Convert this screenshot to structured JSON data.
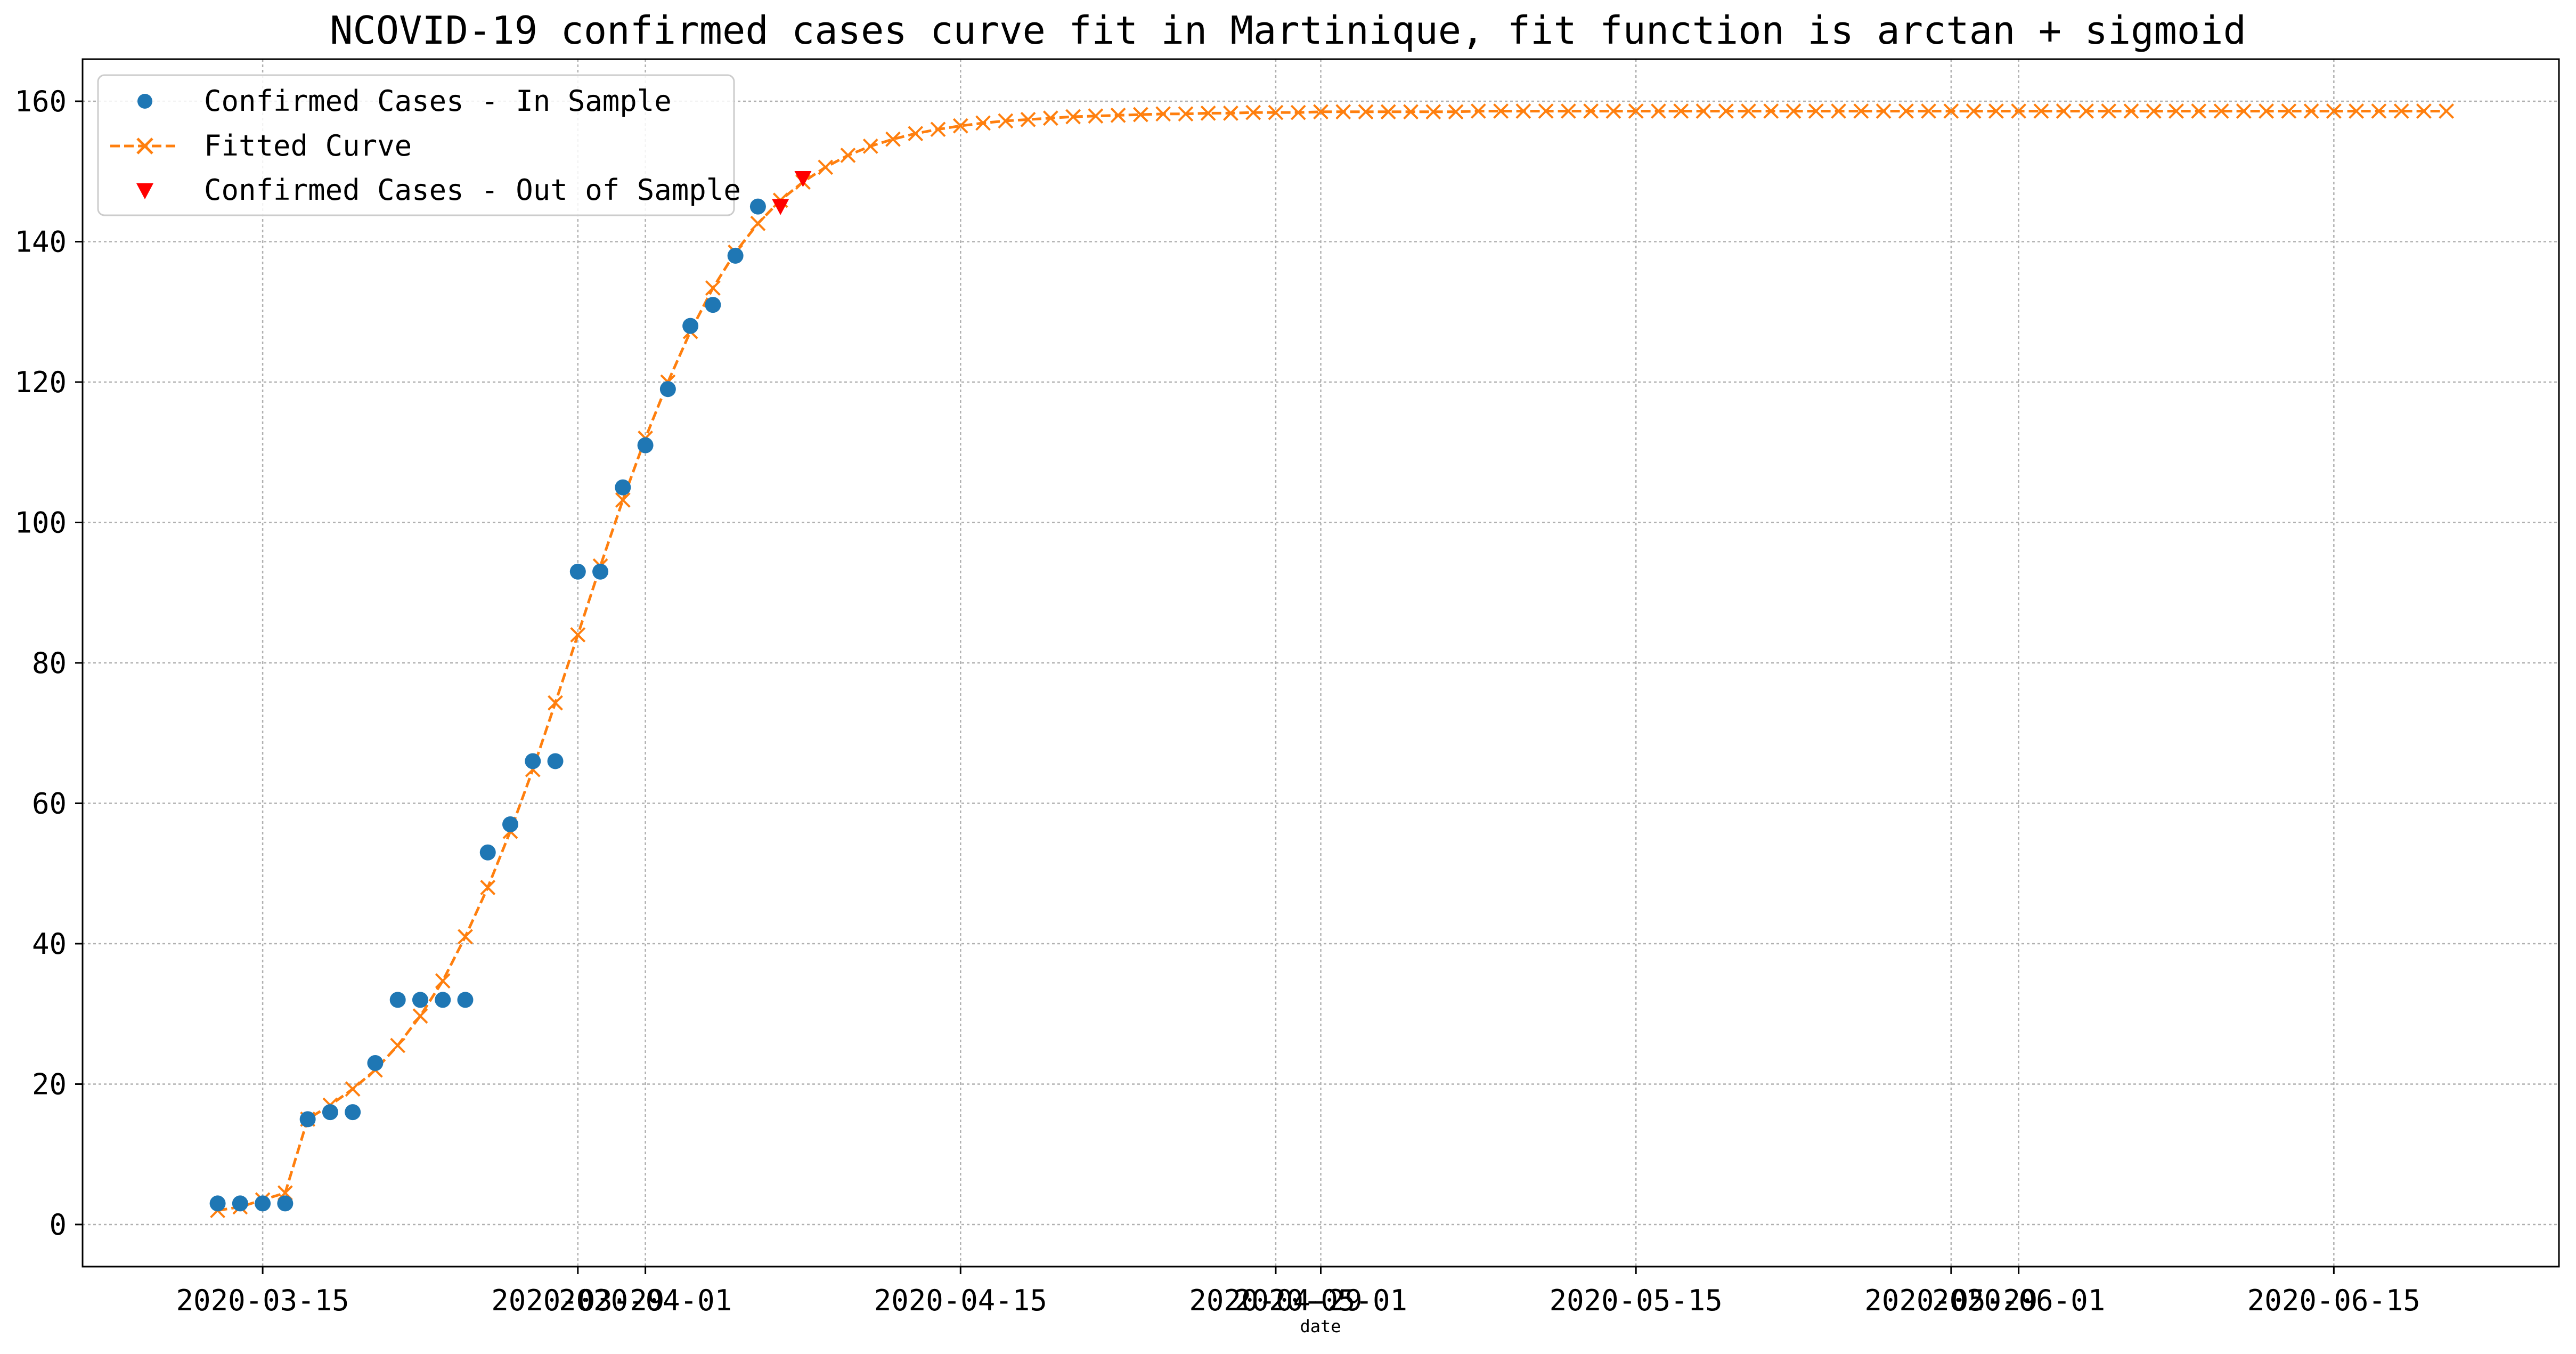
{
  "chart_data": {
    "type": "line",
    "title": "NCOVID-19 confirmed cases curve fit in Martinique, fit function is arctan + sigmoid",
    "xlabel": "date",
    "ylabel": "",
    "ylim": [
      -6,
      166
    ],
    "xlim": [
      "2020-03-07",
      "2020-06-25"
    ],
    "grid": true,
    "legend_position": "upper left",
    "yticks": [
      0,
      20,
      40,
      60,
      80,
      100,
      120,
      140,
      160
    ],
    "xticks": [
      "2020-03-15",
      "2020-03-29",
      "2020-04-01",
      "2020-04-15",
      "2020-04-29",
      "2020-05-01",
      "2020-05-15",
      "2020-05-29",
      "2020-06-01",
      "2020-06-15"
    ],
    "series": [
      {
        "name": "Confirmed Cases - In Sample",
        "kind": "scatter",
        "marker": "circle",
        "color": "#1f77b4",
        "start_date": "2020-03-13",
        "values": [
          3,
          3,
          3,
          3,
          15,
          16,
          16,
          23,
          32,
          32,
          32,
          32,
          53,
          57,
          66,
          66,
          93,
          93,
          105,
          111,
          119,
          128,
          131,
          138,
          145
        ]
      },
      {
        "name": "Fitted Curve",
        "kind": "line",
        "marker": "x",
        "linestyle": "dashed",
        "color": "#ff7f0e",
        "start_date": "2020-03-13",
        "values": [
          2,
          2.5,
          3.5,
          4.5,
          15,
          17,
          19.3,
          22,
          25.5,
          29.7,
          34.7,
          41,
          48,
          56,
          64.8,
          74.3,
          84,
          93.8,
          103.2,
          112,
          120,
          127.2,
          133.4,
          138.5,
          142.6,
          145.9,
          148.5,
          150.6,
          152.3,
          153.6,
          154.6,
          155.4,
          156,
          156.5,
          156.9,
          157.2,
          157.4,
          157.6,
          157.8,
          157.9,
          158,
          158.1,
          158.2,
          158.2,
          158.3,
          158.3,
          158.4,
          158.4,
          158.4,
          158.5,
          158.5,
          158.5,
          158.5,
          158.5,
          158.5,
          158.5,
          158.6,
          158.6,
          158.6,
          158.6,
          158.6,
          158.6,
          158.6,
          158.6,
          158.6,
          158.6,
          158.6,
          158.6,
          158.6,
          158.6,
          158.6,
          158.6,
          158.6,
          158.6,
          158.6,
          158.6,
          158.6,
          158.6,
          158.6,
          158.6,
          158.6,
          158.6,
          158.6,
          158.6,
          158.6,
          158.6,
          158.6,
          158.6,
          158.6,
          158.6,
          158.6,
          158.6,
          158.6,
          158.6,
          158.6,
          158.6,
          158.6,
          158.6,
          158.6,
          158.6
        ]
      },
      {
        "name": "Confirmed Cases - Out of Sample",
        "kind": "scatter",
        "marker": "triangle-down",
        "color": "#ff0000",
        "start_date": "2020-04-07",
        "values": [
          145,
          149
        ]
      }
    ]
  }
}
